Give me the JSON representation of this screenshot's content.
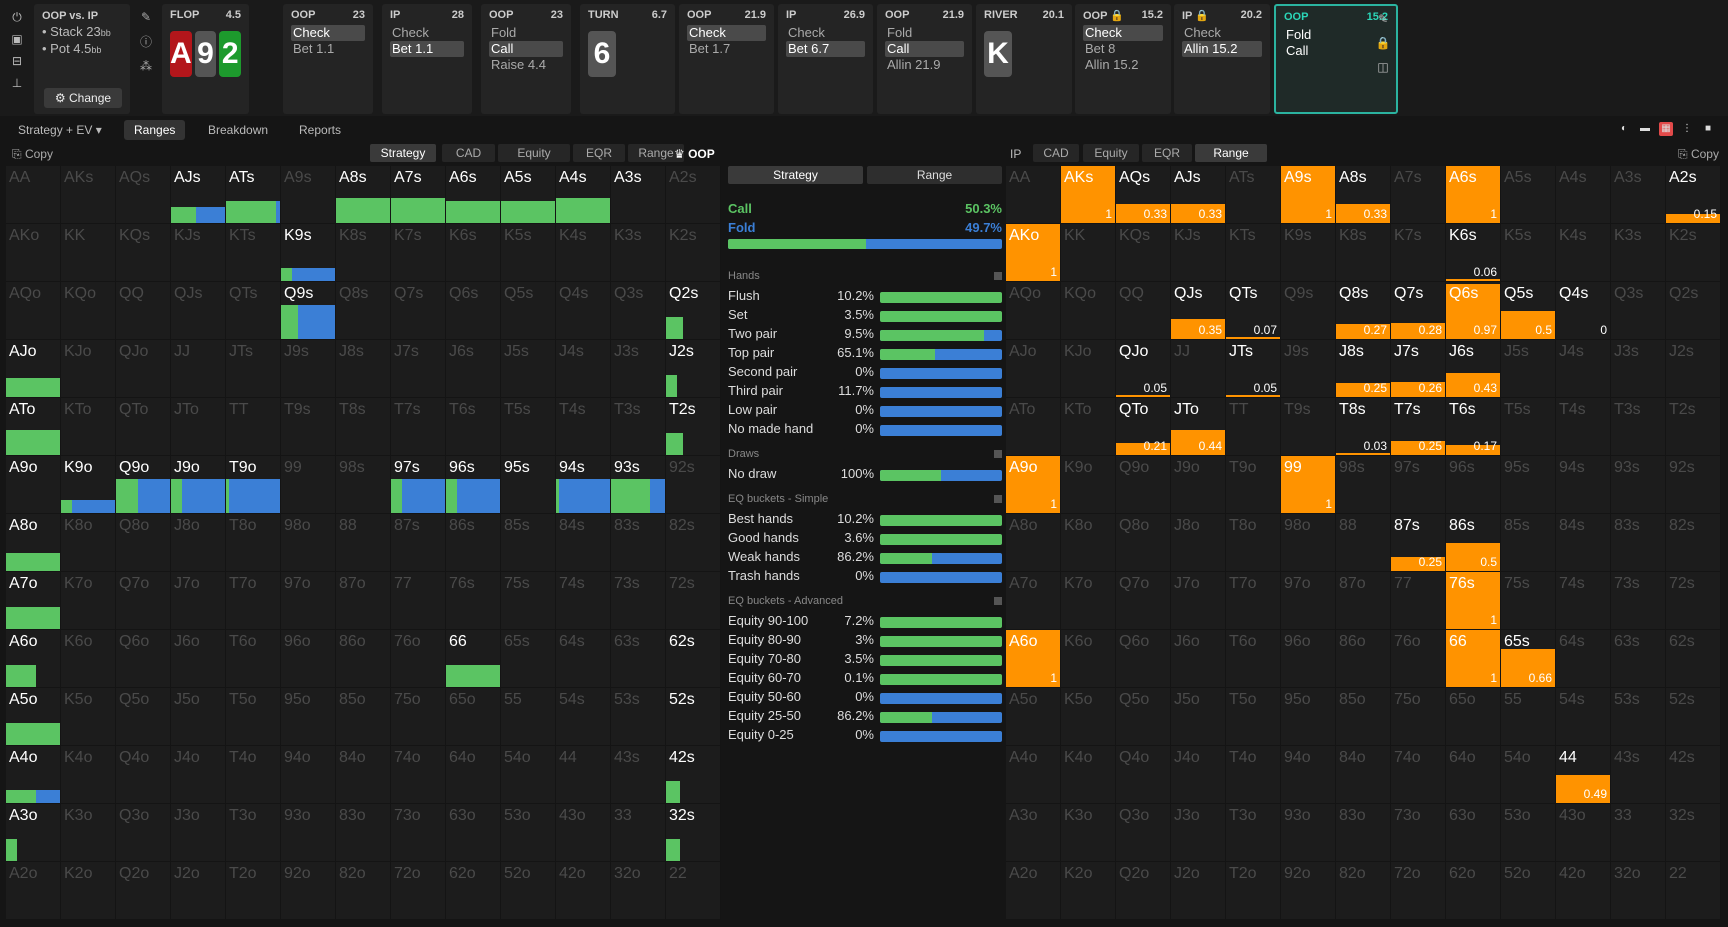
{
  "info": {
    "title": "OOP vs. IP",
    "stack": "Stack 23",
    "stack_unit": "bb",
    "pot": "Pot 4.5",
    "pot_unit": "bb",
    "change": "Change"
  },
  "nodes": [
    {
      "label": "FLOP",
      "val": "4.5",
      "cards": [
        {
          "r": "A",
          "c": "red"
        },
        {
          "r": "9",
          "c": "grey"
        },
        {
          "r": "2",
          "c": "green"
        }
      ]
    },
    {
      "label": "OOP",
      "val": "23",
      "actions": [
        "Check",
        "Bet 1.1"
      ],
      "sel": 0
    },
    {
      "label": "IP",
      "val": "28",
      "actions": [
        "Check",
        "Bet 1.1"
      ],
      "sel": 1
    },
    {
      "label": "OOP",
      "val": "23",
      "actions": [
        "Fold",
        "Call",
        "Raise 4.4"
      ],
      "sel": 1
    },
    {
      "label": "TURN",
      "val": "6.7",
      "cards": [
        {
          "r": "6",
          "c": "grey"
        }
      ]
    },
    {
      "label": "OOP",
      "val": "21.9",
      "actions": [
        "Check",
        "Bet 1.7"
      ],
      "sel": 0
    },
    {
      "label": "IP",
      "val": "26.9",
      "actions": [
        "Check",
        "Bet 6.7"
      ],
      "sel": 1
    },
    {
      "label": "OOP",
      "val": "21.9",
      "actions": [
        "Fold",
        "Call",
        "Allin 21.9"
      ],
      "sel": 1
    },
    {
      "label": "RIVER",
      "val": "20.1",
      "cards": [
        {
          "r": "K",
          "c": "grey"
        }
      ]
    },
    {
      "label": "OOP",
      "val": "15.2",
      "lock": true,
      "actions": [
        "Check",
        "Bet 8",
        "Allin 15.2"
      ],
      "sel": 0
    },
    {
      "label": "IP",
      "val": "20.2",
      "lock": true,
      "actions": [
        "Check",
        "Allin 15.2"
      ],
      "sel": 1
    },
    {
      "label": "OOP",
      "val": "15.2",
      "actions": [
        "Fold",
        "Call"
      ],
      "sel": -1,
      "active": true
    }
  ],
  "tabs": {
    "mode": "Strategy + EV",
    "ranges": "Ranges",
    "breakdown": "Breakdown",
    "reports": "Reports"
  },
  "left": {
    "copy": "Copy",
    "tabs": [
      "Strategy",
      "CAD",
      "Equity",
      "EQR",
      "Range"
    ],
    "player": "OOP"
  },
  "right": {
    "copy": "Copy",
    "player": "IP",
    "tabs": [
      "CAD",
      "Equity",
      "EQR",
      "Range"
    ]
  },
  "panel": {
    "btn_strategy": "Strategy",
    "btn_range": "Range",
    "call_label": "Call",
    "call_pct": "50.3%",
    "fold_label": "Fold",
    "fold_pct": "49.7%",
    "call_frac": 0.503,
    "sections": [
      {
        "title": "Hands",
        "rows": [
          [
            "Flush",
            "10.2%",
            1
          ],
          [
            "Set",
            "3.5%",
            1
          ],
          [
            "Two pair",
            "9.5%",
            0.85
          ],
          [
            "Top pair",
            "65.1%",
            0.45
          ],
          [
            "Second pair",
            "0%",
            0
          ],
          [
            "Third pair",
            "11.7%",
            0
          ],
          [
            "Low pair",
            "0%",
            0
          ],
          [
            "No made hand",
            "0%",
            0
          ]
        ]
      },
      {
        "title": "Draws",
        "rows": [
          [
            "No draw",
            "100%",
            0.5
          ]
        ]
      },
      {
        "title": "EQ buckets - Simple",
        "rows": [
          [
            "Best hands",
            "10.2%",
            1
          ],
          [
            "Good hands",
            "3.6%",
            1
          ],
          [
            "Weak hands",
            "86.2%",
            0.43
          ],
          [
            "Trash hands",
            "0%",
            0
          ]
        ]
      },
      {
        "title": "EQ buckets - Advanced",
        "rows": [
          [
            "Equity 90-100",
            "7.2%",
            1
          ],
          [
            "Equity 80-90",
            "3%",
            1
          ],
          [
            "Equity 70-80",
            "3.5%",
            1
          ],
          [
            "Equity 60-70",
            "0.1%",
            1
          ],
          [
            "Equity 50-60",
            "0%",
            0
          ],
          [
            "Equity 25-50",
            "86.2%",
            0.43
          ],
          [
            "Equity 0-25",
            "0%",
            0
          ]
        ]
      }
    ]
  },
  "colors": {
    "call": "#5bc463",
    "fold": "#3b7fd6",
    "ip": "#ff9300",
    "accent": "#2bd6b8"
  },
  "oop_cells": {
    "AJs": [
      0,
      0.45,
      0.4
    ],
    "ATs": [
      0,
      0.9,
      0.6
    ],
    "A8s": [
      0,
      1,
      0.7
    ],
    "A7s": [
      0,
      1,
      0.7
    ],
    "A6s": [
      0,
      1,
      0
    ],
    "A5s": [
      0,
      1,
      0.6
    ],
    "A4s": [
      0,
      1,
      0.7
    ],
    "A3s": [
      0,
      0,
      0
    ],
    "K9s": [
      0,
      0.2,
      0.3
    ],
    "Q9s": [
      0,
      0.3,
      1
    ],
    "Q2s": [
      0,
      0.3,
      0
    ],
    "AJo": [
      0,
      1,
      0.5
    ],
    "J2s": [
      0,
      0.2,
      0
    ],
    "ATo": [
      0,
      1,
      0.7
    ],
    "T2s": [
      0,
      0.3,
      0
    ],
    "A9o": [
      0,
      0,
      0
    ],
    "K9o": [
      0,
      0.2,
      0.3
    ],
    "Q9o": [
      0,
      0.4,
      1
    ],
    "J9o": [
      0,
      0.2,
      1
    ],
    "T9o": [
      0,
      0.05,
      1
    ],
    "97s": [
      0,
      0.2,
      1
    ],
    "96s": [
      0,
      0.2,
      1
    ],
    "95s": [
      0,
      0,
      0
    ],
    "94s": [
      0,
      0.05,
      1
    ],
    "93s": [
      0,
      0.7,
      1
    ],
    "A8o": [
      0,
      1,
      0.45
    ],
    "A7o": [
      0,
      1,
      0.6
    ],
    "A6o": [
      0,
      0.55,
      0
    ],
    "66": [
      0,
      1,
      0
    ],
    "62s": [
      0,
      0,
      0
    ],
    "A5o": [
      0,
      1,
      0.6
    ],
    "52s": [
      0,
      0,
      0
    ],
    "A4o": [
      0,
      0.55,
      0.3
    ],
    "42s": [
      0,
      0.25,
      0
    ],
    "A3o": [
      0,
      0.2,
      0
    ],
    "32s": [
      0,
      0.25,
      0
    ]
  },
  "ip_cells": {
    "AKs": [
      1,
      "1"
    ],
    "AQs": [
      0.33,
      "0.33"
    ],
    "AJs": [
      0.33,
      "0.33"
    ],
    "A9s": [
      1,
      "1"
    ],
    "A8s": [
      0.33,
      "0.33"
    ],
    "A6s": [
      1,
      "1"
    ],
    "A2s": [
      0.15,
      "0.15"
    ],
    "AKo": [
      1,
      "1"
    ],
    "K6s": [
      0.06,
      "0.06"
    ],
    "QJs": [
      0.35,
      "0.35"
    ],
    "QTs": [
      0.07,
      "0.07"
    ],
    "Q8s": [
      0.27,
      "0.27"
    ],
    "Q7s": [
      0.28,
      "0.28"
    ],
    "Q6s": [
      0.97,
      "0.97"
    ],
    "Q5s": [
      0.5,
      "0.5"
    ],
    "Q4s": [
      0,
      "0"
    ],
    "QJo": [
      0.05,
      "0.05"
    ],
    "JTs": [
      0.05,
      "0.05"
    ],
    "J8s": [
      0.25,
      "0.25"
    ],
    "J7s": [
      0.26,
      "0.26"
    ],
    "J6s": [
      0.43,
      "0.43"
    ],
    "QTo": [
      0.21,
      "0.21"
    ],
    "JTo": [
      0.44,
      "0.44"
    ],
    "T8s": [
      0.03,
      "0.03"
    ],
    "T7s": [
      0.25,
      "0.25"
    ],
    "T6s": [
      0.17,
      "0.17"
    ],
    "A9o": [
      1,
      "1"
    ],
    "99": [
      1,
      "1"
    ],
    "87s": [
      0.25,
      "0.25"
    ],
    "86s": [
      0.5,
      "0.5"
    ],
    "76s": [
      1,
      "1"
    ],
    "A6o": [
      1,
      "1"
    ],
    "66": [
      1,
      "1"
    ],
    "65s": [
      0.66,
      "0.66"
    ],
    "44": [
      0.49,
      "0.49"
    ]
  }
}
